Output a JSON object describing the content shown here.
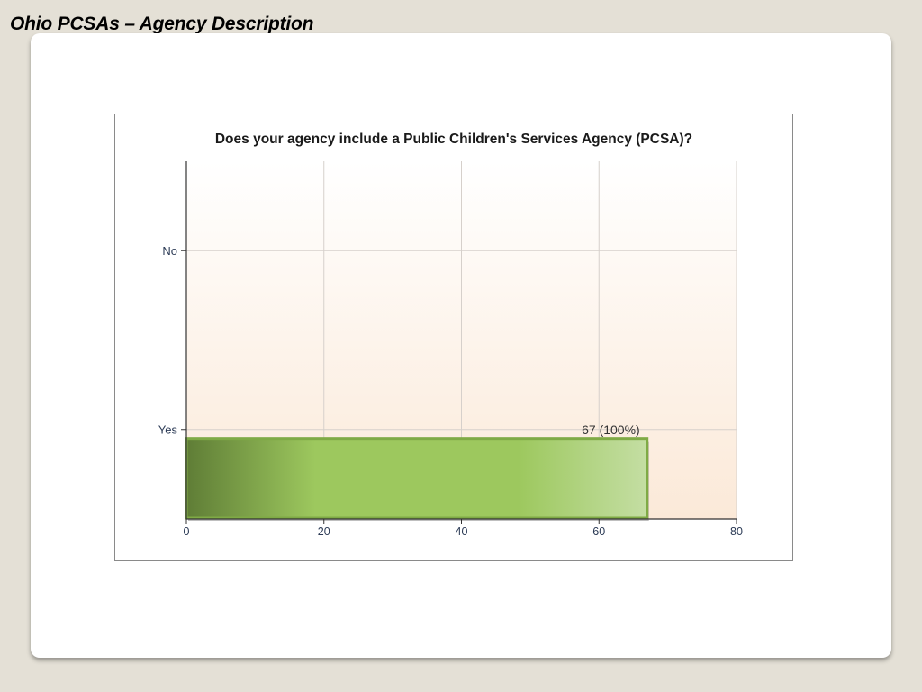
{
  "slide": {
    "title": "Ohio PCSAs – Agency Description"
  },
  "chart_data": {
    "type": "bar",
    "orientation": "horizontal",
    "title": "Does your agency include a Public Children's Services Agency (PCSA)?",
    "xlabel": "",
    "ylabel": "",
    "categories": [
      "No",
      "Yes"
    ],
    "values": [
      0,
      67
    ],
    "data_labels": [
      "",
      "67 (100%)"
    ],
    "xlim": [
      0,
      80
    ],
    "x_ticks": [
      0,
      20,
      40,
      60,
      80
    ],
    "grid": true,
    "legend": "none",
    "colors": {
      "bar_dark": "#5f7d36",
      "bar_mid": "#9dc85e",
      "bar_light": "#c4dea3",
      "bar_border": "#7faa45",
      "plot_bg_top": "#ffffff",
      "plot_bg_bottom": "#fbe9d8",
      "grid": "#d6d0cb",
      "axis": "#333333",
      "tick_text": "#2b3a55",
      "label_text": "#333333"
    }
  }
}
